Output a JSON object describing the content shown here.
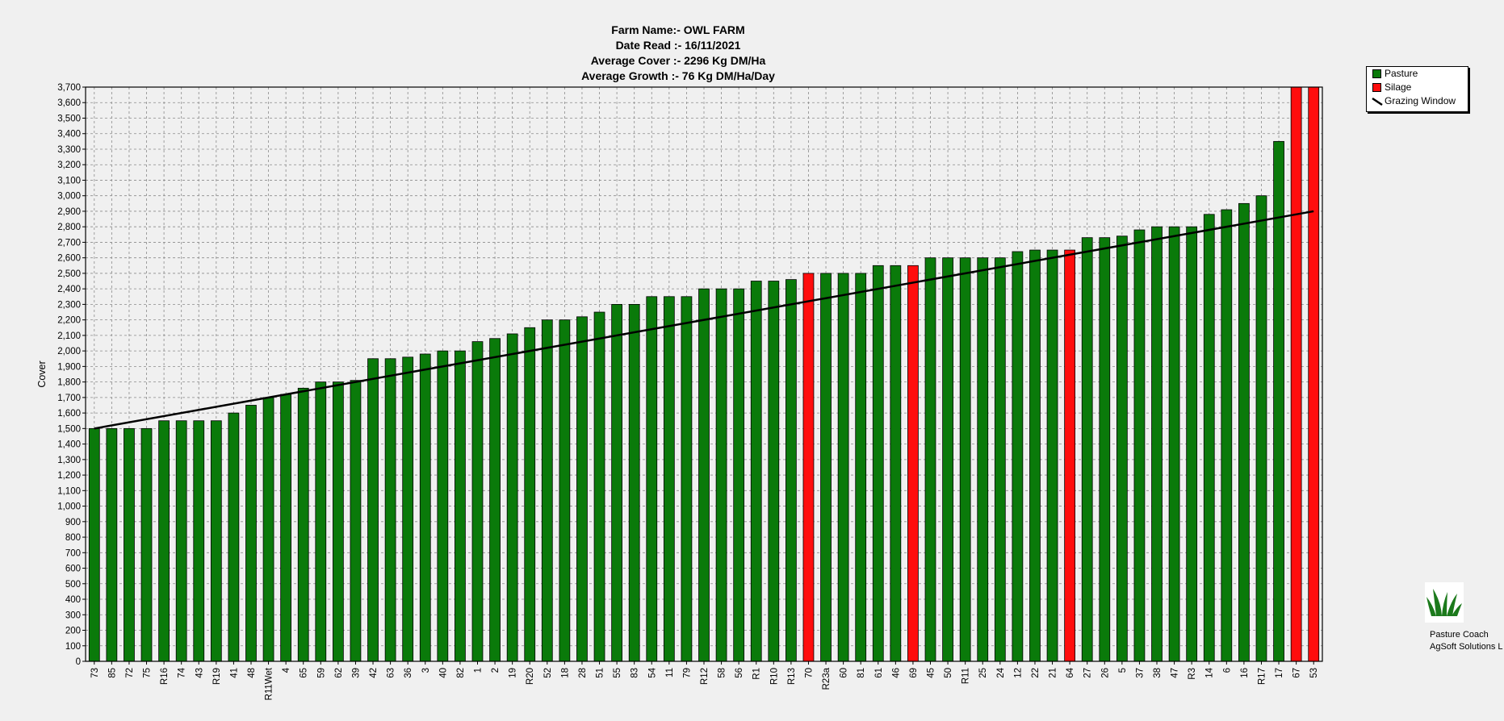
{
  "header": {
    "farm_name": "Farm Name:- OWL FARM",
    "date_read": "Date Read :-  16/11/2021",
    "average_cover": "Average Cover :-  2296 Kg DM/Ha",
    "average_growth": "Average Growth :-  76 Kg DM/Ha/Day"
  },
  "legend": {
    "pasture": "Pasture",
    "silage": "Silage",
    "grazing_window": "Grazing Window"
  },
  "branding": {
    "line1": "Pasture Coach",
    "line2": "AgSoft Solutions L",
    "icon": "grass-logo-icon"
  },
  "colors": {
    "pasture": "#0a7a0a",
    "silage": "#ff0d0d",
    "grazing_window": "#000000"
  },
  "chart_data": {
    "type": "bar",
    "ylabel": "Cover",
    "ylim": [
      0,
      3700
    ],
    "ytick_step": 100,
    "grid": true,
    "legend_position": "top-right",
    "categories": [
      "73",
      "85",
      "72",
      "75",
      "R16",
      "74",
      "43",
      "R19",
      "41",
      "48",
      "R11Wet",
      "4",
      "65",
      "59",
      "62",
      "39",
      "42",
      "63",
      "36",
      "3",
      "40",
      "82",
      "1",
      "2",
      "19",
      "R20",
      "52",
      "18",
      "28",
      "51",
      "55",
      "83",
      "54",
      "11",
      "79",
      "R12",
      "58",
      "56",
      "R1",
      "R10",
      "R13",
      "70",
      "R23a",
      "60",
      "81",
      "61",
      "46",
      "69",
      "45",
      "50",
      "R11",
      "25",
      "24",
      "12",
      "22",
      "21",
      "64",
      "27",
      "26",
      "5",
      "37",
      "38",
      "47",
      "R3",
      "14",
      "6",
      "16",
      "R17",
      "17",
      "67",
      "53"
    ],
    "values": [
      1500,
      1500,
      1500,
      1500,
      1550,
      1550,
      1550,
      1550,
      1600,
      1650,
      1700,
      1720,
      1760,
      1800,
      1800,
      1810,
      1950,
      1950,
      1960,
      1980,
      2000,
      2000,
      2060,
      2080,
      2110,
      2150,
      2200,
      2200,
      2220,
      2250,
      2300,
      2300,
      2350,
      2350,
      2350,
      2400,
      2400,
      2400,
      2450,
      2450,
      2460,
      2500,
      2500,
      2500,
      2500,
      2550,
      2550,
      2550,
      2600,
      2600,
      2600,
      2600,
      2600,
      2640,
      2650,
      2650,
      2650,
      2730,
      2730,
      2740,
      2780,
      2800,
      2800,
      2800,
      2880,
      2910,
      2950,
      3000,
      3350,
      3700,
      3720
    ],
    "silage_categories": [
      "70",
      "69",
      "64",
      "67",
      "53"
    ],
    "grazing_window": {
      "x": [
        "73",
        "53"
      ],
      "y": [
        1500,
        2900
      ]
    }
  }
}
